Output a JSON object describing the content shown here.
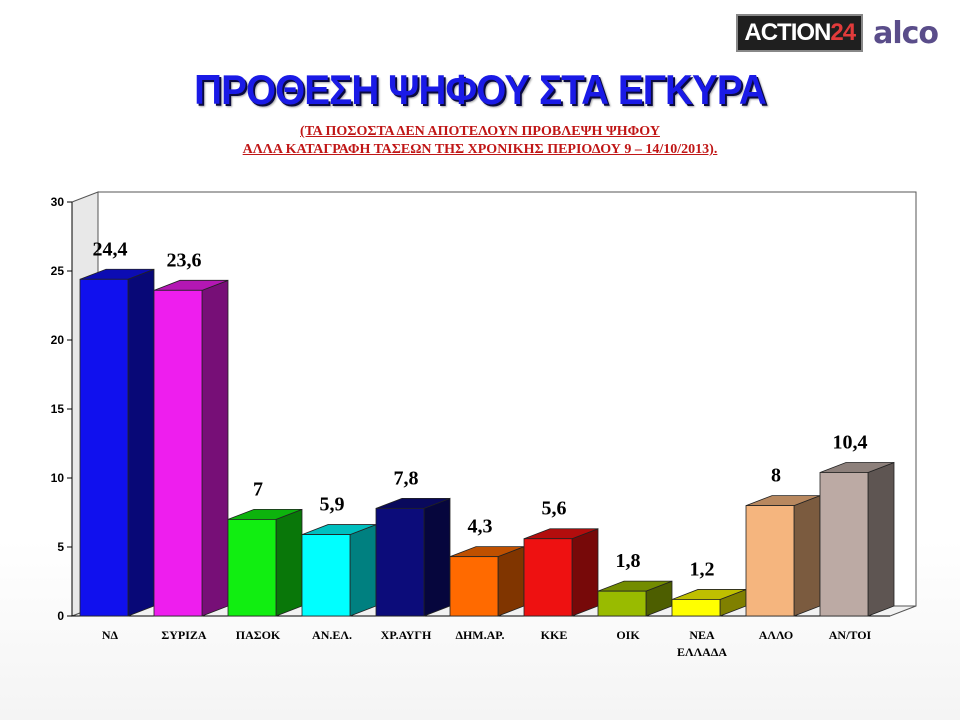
{
  "logos": {
    "action_text": "ACTION",
    "action_num": "24",
    "alco_text": "alco"
  },
  "header": {
    "title": "ΠΡΟΘΕΣΗ ΨΗΦΟΥ ΣΤΑ ΕΓΚΥΡΑ",
    "subtitle_line1": "(ΤΑ ΠΟΣΟΣΤΑ ΔΕΝ ΑΠΟΤΕΛΟΥΝ ΠΡΟΒΛΕΨΗ ΨΗΦΟΥ",
    "subtitle_line2": "ΑΛΛΑ ΚΑΤΑΓΡΑΦΗ ΤΑΣΕΩΝ ΤΗΣ ΧΡΟΝΙΚΗΣ ΠΕΡΙΟΔΟΥ 9 – 14/10/2013)."
  },
  "chart_data": {
    "type": "bar",
    "categories": [
      "ΝΔ",
      "ΣΥΡΙΖΑ",
      "ΠΑΣΟΚ",
      "ΑΝ.ΕΛ.",
      "ΧΡ.ΑΥΓΗ",
      "ΔΗΜ.ΑΡ.",
      "ΚΚΕ",
      "ΟΙΚ",
      "ΝΕΑ ΕΛΛΑΔΑ",
      "ΑΛΛΟ",
      "ΑΝ/ΤΟΙ"
    ],
    "values": [
      24.4,
      23.6,
      7,
      5.9,
      7.8,
      4.3,
      5.6,
      1.8,
      1.2,
      8,
      10.4
    ],
    "value_labels": [
      "24,4",
      "23,6",
      "7",
      "5,9",
      "7,8",
      "4,3",
      "5,6",
      "1,8",
      "1,2",
      "8",
      "10,4"
    ],
    "colors": [
      "#1010ee",
      "#ee1eee",
      "#11ee11",
      "#00ffff",
      "#0c0c7a",
      "#ff6a00",
      "#ee1111",
      "#99bb00",
      "#ffff00",
      "#f5b57e",
      "#bcaaa4"
    ],
    "yticks": [
      0,
      5,
      10,
      15,
      20,
      25,
      30
    ],
    "ylim": [
      0,
      30
    ],
    "grid": false,
    "bar_style": "3d"
  }
}
